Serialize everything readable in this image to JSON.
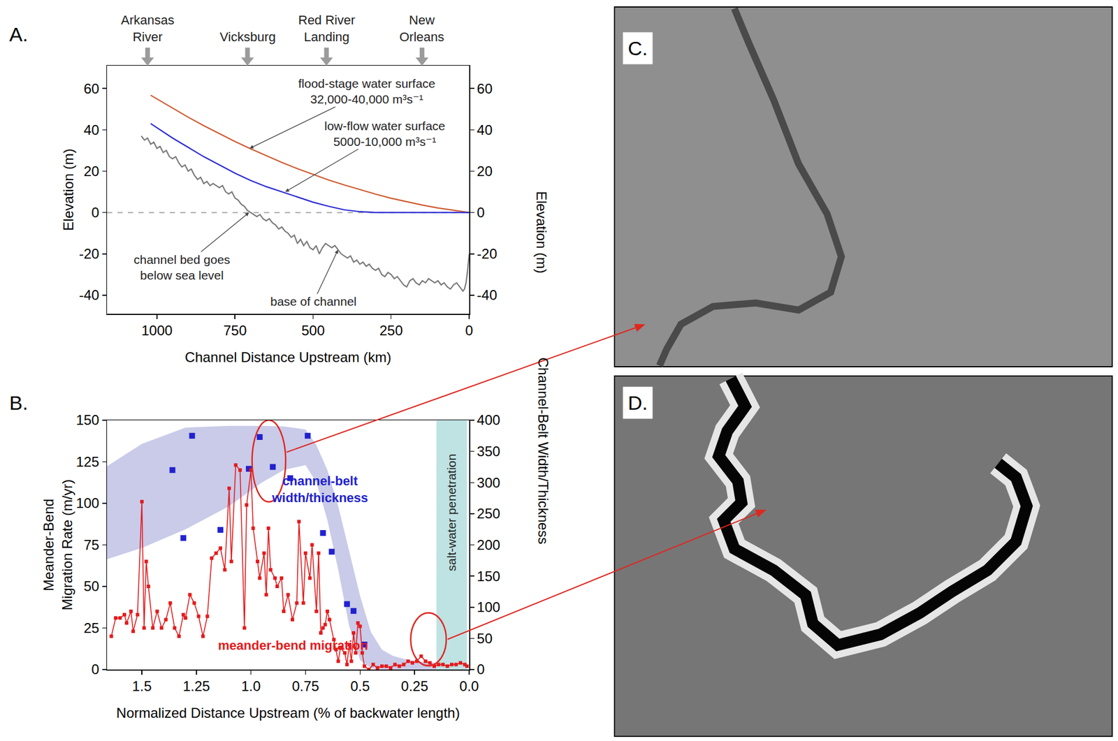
{
  "chart_data": [
    {
      "type": "line",
      "panel_label": "A.",
      "xlabel": "Channel Distance Upstream (km)",
      "ylabel": "Elevation (m)",
      "y2label": "Elevation (m)",
      "xlim": [
        1160,
        0
      ],
      "xticks": [
        1000,
        750,
        500,
        250,
        0
      ],
      "ylim": [
        -49,
        71
      ],
      "yticks": [
        -40,
        -20,
        0,
        20,
        40,
        60
      ],
      "y2lim": [
        -49,
        71
      ],
      "y2ticks": [
        -40,
        -20,
        0,
        20,
        40,
        60
      ],
      "grid": false,
      "sites": [
        {
          "name": "Arkansas River",
          "x": 1030
        },
        {
          "name": "Vicksburg",
          "x": 710
        },
        {
          "name": "Red River Landing",
          "x": 457
        },
        {
          "name": "New Orleans",
          "x": 151
        }
      ],
      "series": [
        {
          "name": "flood-stage water surface",
          "subtitle": "32,000-40,000 m³s⁻¹",
          "color": "#cf5a2e",
          "line_style": "solid",
          "x": [
            1020,
            950,
            900,
            850,
            800,
            750,
            700,
            650,
            600,
            550,
            500,
            450,
            400,
            350,
            300,
            250,
            200,
            150,
            100,
            50,
            0
          ],
          "values": [
            56.7,
            50.4,
            46.1,
            42,
            38.1,
            34.3,
            30.8,
            27.4,
            24.2,
            21.2,
            18.4,
            15.7,
            13.3,
            11,
            8.9,
            6.9,
            5.2,
            3.6,
            2.2,
            1,
            0
          ],
          "label_at": {
            "x": 703,
            "y": 31
          }
        },
        {
          "name": "low-flow water surface",
          "subtitle": "5000-10,000 m³s⁻¹",
          "color": "#2b2bd6",
          "line_style": "solid",
          "x": [
            1020,
            950,
            900,
            850,
            800,
            750,
            700,
            650,
            600,
            550,
            500,
            450,
            400,
            350,
            300,
            250,
            200,
            150,
            100,
            50,
            0
          ],
          "values": [
            43,
            36,
            31.5,
            27,
            23,
            19,
            15.5,
            12.5,
            10,
            7.5,
            5,
            3,
            1.3,
            0.4,
            0,
            0,
            0,
            0,
            0,
            0,
            0
          ],
          "label_at": {
            "x": 589,
            "y": 10
          }
        },
        {
          "name": "base of channel",
          "color": "#7a7a7a",
          "line_style": "solid",
          "x": [
            1050,
            1040,
            1030,
            1020,
            1010,
            1000,
            990,
            980,
            970,
            960,
            950,
            940,
            930,
            920,
            910,
            900,
            890,
            880,
            870,
            860,
            850,
            840,
            830,
            820,
            810,
            800,
            790,
            780,
            770,
            760,
            750,
            740,
            730,
            720,
            710,
            700,
            690,
            680,
            670,
            660,
            650,
            640,
            630,
            620,
            610,
            600,
            590,
            580,
            570,
            560,
            550,
            540,
            530,
            520,
            510,
            500,
            490,
            480,
            470,
            460,
            450,
            440,
            430,
            420,
            410,
            400,
            390,
            380,
            370,
            360,
            350,
            340,
            330,
            320,
            310,
            300,
            290,
            280,
            270,
            260,
            250,
            240,
            230,
            220,
            210,
            200,
            190,
            180,
            170,
            160,
            150,
            140,
            130,
            120,
            110,
            100,
            90,
            80,
            70,
            60,
            50,
            40,
            30,
            20,
            15,
            10,
            5,
            0
          ],
          "values": [
            37,
            35,
            36,
            33,
            34,
            31,
            32,
            29,
            30,
            27,
            26,
            27,
            24,
            22,
            23,
            20,
            21,
            18,
            16,
            17,
            14,
            15,
            13,
            14,
            13,
            12,
            13,
            10,
            9,
            10,
            7,
            6,
            4,
            3,
            1,
            0,
            -1,
            -2,
            -1,
            -3,
            -4,
            -3,
            -5,
            -6,
            -8,
            -7,
            -9,
            -10,
            -12,
            -11,
            -15,
            -13,
            -16,
            -14,
            -17,
            -18,
            -16,
            -20,
            -17,
            -15,
            -16,
            -17,
            -16,
            -18,
            -20,
            -21,
            -22,
            -21,
            -24,
            -23,
            -25,
            -24,
            -26,
            -25,
            -27,
            -28,
            -27,
            -30,
            -31,
            -29,
            -30,
            -32,
            -31,
            -33,
            -35,
            -36,
            -33,
            -32,
            -34,
            -35,
            -33,
            -34,
            -32,
            -33,
            -34,
            -33,
            -35,
            -34,
            -36,
            -37,
            -35,
            -34,
            -36,
            -38,
            -37,
            -34,
            -28,
            -20
          ],
          "label_at": {
            "x": 420,
            "y": -18
          }
        }
      ],
      "reference_lines": [
        {
          "y": 0,
          "line_style": "dash",
          "color": "#aaaaaa"
        }
      ],
      "annotations": [
        {
          "text": "channel bed goes below sea level",
          "x": 705,
          "y": 0
        }
      ]
    },
    {
      "type": "line",
      "panel_label": "B.",
      "xlabel": "Normalized Distance Upstream (% of backwater length)",
      "ylabel": "Meander-Bend Migration Rate (m/yr)",
      "y2label": "Channel-Belt Width/Thickness",
      "xlim": [
        1.66,
        0
      ],
      "xticks": [
        1.5,
        1.25,
        {
          "value": 1,
          "label": "1.0"
        },
        0.75,
        0.5,
        0.25,
        {
          "value": 0,
          "label": "0.0"
        }
      ],
      "ylim": [
        0,
        150
      ],
      "yticks": [
        0,
        25,
        50,
        75,
        100,
        125,
        150
      ],
      "y2lim": [
        0,
        400
      ],
      "y2ticks": [
        0,
        50,
        100,
        150,
        200,
        250,
        300,
        350,
        400
      ],
      "grid": false,
      "band": {
        "axis": "y2",
        "color": "#c9cbe9",
        "x": [
          1.66,
          1.5,
          1.3,
          1.1,
          0.95,
          0.85,
          0.75,
          0.7,
          0.65,
          0.6,
          0.55,
          0.5,
          0.45,
          0.4,
          0.35,
          0.3,
          0.25,
          0.2,
          0.15
        ],
        "lower": [
          177,
          195,
          225,
          262,
          300,
          320,
          328,
          300,
          240,
          160,
          70,
          15,
          2,
          0,
          0,
          0,
          0,
          0,
          0
        ],
        "upper": [
          326,
          362,
          388,
          391,
          391,
          390,
          385,
          360,
          320,
          262,
          190,
          118,
          60,
          32,
          22,
          17,
          14,
          12,
          11
        ]
      },
      "salt_water": {
        "label": "salt-water penetration",
        "x": [
          0.15,
          0.01
        ],
        "color": "#bfe2e3"
      },
      "series": [
        {
          "name": "meander-bend migration",
          "type": "line",
          "marker": "square",
          "color": "#e41a1c",
          "axis": "y",
          "x": [
            1.64,
            1.62,
            1.6,
            1.58,
            1.57,
            1.55,
            1.54,
            1.52,
            1.5,
            1.49,
            1.48,
            1.47,
            1.45,
            1.43,
            1.41,
            1.39,
            1.37,
            1.35,
            1.33,
            1.31,
            1.3,
            1.28,
            1.26,
            1.24,
            1.22,
            1.2,
            1.18,
            1.16,
            1.14,
            1.12,
            1.1,
            1.09,
            1.07,
            1.05,
            1.03,
            1.02,
            1.0,
            0.99,
            0.97,
            0.96,
            0.94,
            0.93,
            0.92,
            0.91,
            0.89,
            0.88,
            0.86,
            0.85,
            0.83,
            0.81,
            0.79,
            0.78,
            0.76,
            0.75,
            0.73,
            0.72,
            0.7,
            0.69,
            0.68,
            0.67,
            0.66,
            0.65,
            0.64,
            0.62,
            0.61,
            0.6,
            0.59,
            0.57,
            0.56,
            0.55,
            0.54,
            0.53,
            0.52,
            0.51,
            0.5,
            0.49,
            0.48,
            0.46,
            0.44,
            0.42,
            0.4,
            0.38,
            0.36,
            0.34,
            0.32,
            0.3,
            0.28,
            0.26,
            0.24,
            0.22,
            0.2,
            0.18,
            0.16,
            0.14,
            0.12,
            0.1,
            0.08,
            0.06,
            0.04,
            0.02,
            0.01
          ],
          "values": [
            20,
            31,
            31,
            33,
            28,
            35,
            23,
            33,
            101,
            25,
            65,
            50,
            25,
            35,
            25,
            30,
            40,
            25,
            20,
            33,
            31,
            45,
            40,
            32,
            20,
            32,
            67,
            70,
            73,
            60,
            109,
            65,
            123,
            120,
            25,
            99,
            120,
            85,
            65,
            55,
            70,
            45,
            85,
            60,
            55,
            50,
            55,
            35,
            45,
            30,
            40,
            89,
            40,
            70,
            55,
            75,
            35,
            70,
            22,
            25,
            27,
            35,
            30,
            18,
            12,
            5,
            13,
            10,
            3,
            15,
            5,
            22,
            10,
            28,
            26,
            10,
            2,
            0,
            3,
            1,
            2,
            2,
            1,
            3,
            2,
            3,
            5,
            4,
            5,
            8,
            5,
            4,
            2,
            3,
            3,
            2,
            3,
            3,
            4,
            3,
            2
          ]
        },
        {
          "name": "channel-belt width/thickness",
          "type": "scatter",
          "marker": "square",
          "color": "#2121cf",
          "axis": "y2",
          "x": [
            1.36,
            1.27,
            1.31,
            1.14,
            1.01,
            0.96,
            0.9,
            0.82,
            0.74,
            0.67,
            0.63,
            0.56,
            0.53,
            0.48
          ],
          "values": [
            320,
            375,
            211,
            224,
            322,
            373,
            325,
            307,
            375,
            219,
            189,
            105,
            94,
            40
          ]
        }
      ],
      "highlights": [
        {
          "axis": "y2",
          "color": "#e0261e",
          "x": [
            0.995,
            0.841
          ],
          "y": [
            269,
            400
          ]
        },
        {
          "axis": "y2",
          "color": "#e0261e",
          "x": [
            0.268,
            0.105
          ],
          "y": [
            6,
            91
          ]
        }
      ]
    }
  ],
  "image_panels": [
    {
      "panel_label": "C."
    },
    {
      "panel_label": "D."
    }
  ]
}
